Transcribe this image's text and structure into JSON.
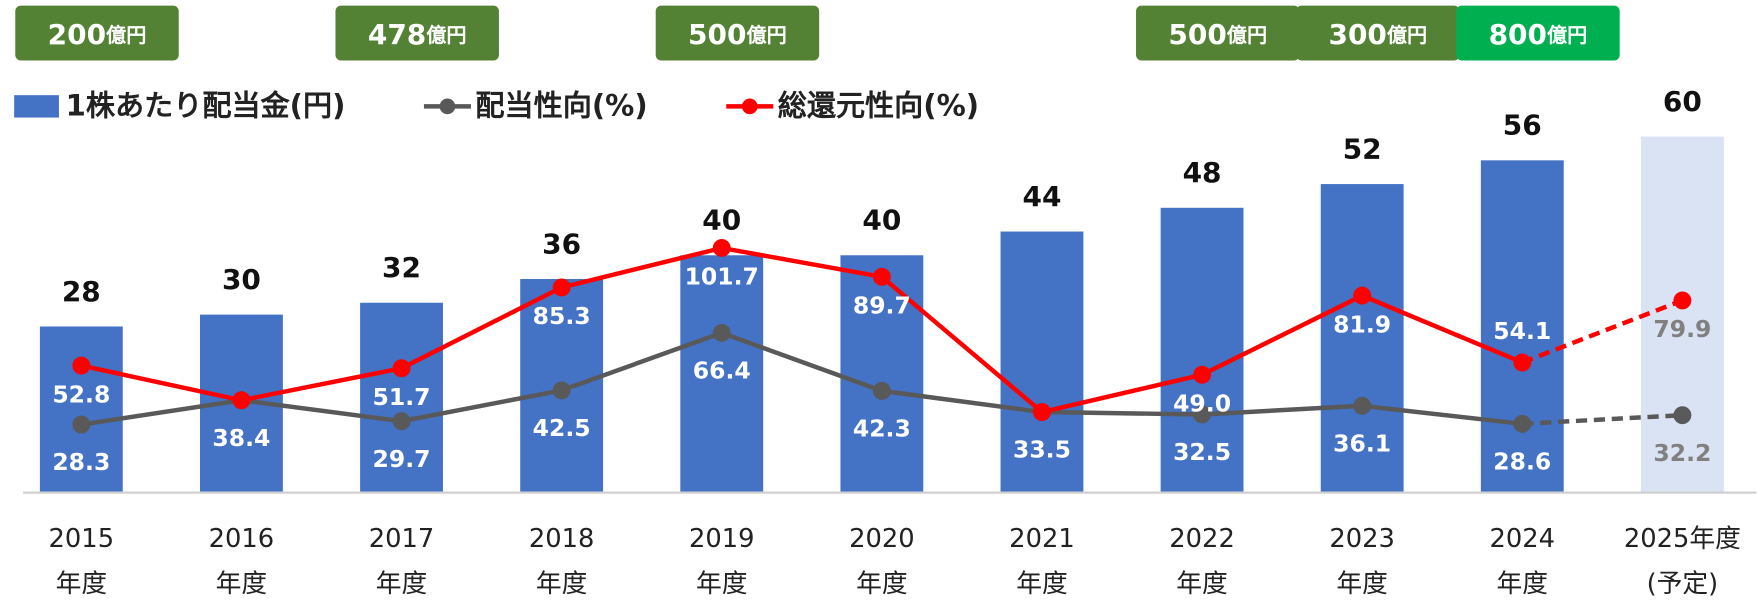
{
  "chart_data": {
    "type": "bar-line",
    "categories": [
      [
        "2015",
        "年度"
      ],
      [
        "2016",
        "年度"
      ],
      [
        "2017",
        "年度"
      ],
      [
        "2018",
        "年度"
      ],
      [
        "2019",
        "年度"
      ],
      [
        "2020",
        "年度"
      ],
      [
        "2021",
        "年度"
      ],
      [
        "2022",
        "年度"
      ],
      [
        "2023",
        "年度"
      ],
      [
        "2024",
        "年度"
      ],
      [
        "2025年度",
        "(予定)"
      ]
    ],
    "ylim": [
      0,
      60
    ],
    "y2lim": [
      0,
      148
    ],
    "series": [
      {
        "name": "1株あたり配当金(円)",
        "color": "#4472c4",
        "forecast_color": "#dae3f3",
        "values": [
          28,
          30,
          32,
          36,
          40,
          40,
          44,
          48,
          52,
          56,
          60
        ]
      },
      {
        "name": "配当性向(%)",
        "color": "#595959",
        "axis": "y2",
        "values": [
          28.3,
          38.4,
          29.7,
          42.5,
          66.4,
          42.3,
          33.5,
          32.5,
          36.1,
          28.6,
          32.2
        ],
        "value_labels": [
          "28.3",
          "38.4",
          "29.7",
          "42.5",
          "66.4",
          "42.3",
          "33.5",
          "32.5",
          "36.1",
          "28.6",
          "32.2"
        ]
      },
      {
        "name": "総還元性向(%)",
        "color": "#ff0000",
        "axis": "y2",
        "values": [
          52.8,
          38.4,
          51.7,
          85.3,
          101.7,
          89.7,
          33.5,
          49.0,
          81.9,
          54.1,
          79.9
        ],
        "value_labels": [
          "52.8",
          "38.4",
          "51.7",
          "85.3",
          "101.7",
          "89.7",
          "33.5",
          "49.0",
          "81.9",
          "54.1",
          "79.9"
        ]
      }
    ],
    "last_is_forecast": true,
    "buybacks": {
      "unit": "億円",
      "values": [
        200,
        null,
        478,
        null,
        500,
        null,
        null,
        500,
        300,
        800,
        null
      ],
      "colors": [
        "#548235",
        null,
        "#548235",
        null,
        "#548235",
        null,
        null,
        "#548235",
        "#548235",
        "#00b050",
        null
      ]
    }
  }
}
